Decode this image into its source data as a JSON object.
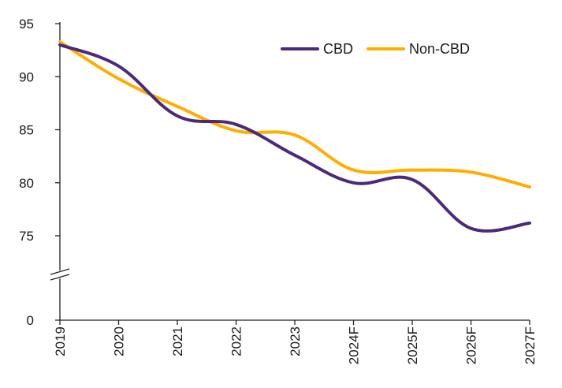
{
  "chart_data": {
    "type": "line",
    "title": "",
    "xlabel": "",
    "ylabel": "",
    "categories": [
      "2019",
      "2020",
      "2021",
      "2022",
      "2023",
      "2024F",
      "2025F",
      "2026F",
      "2027F"
    ],
    "series": [
      {
        "name": "CBD",
        "color": "#4b2a7b",
        "values": [
          93.0,
          91.0,
          86.3,
          85.5,
          82.6,
          80.0,
          80.3,
          75.7,
          76.2
        ]
      },
      {
        "name": "Non-CBD",
        "color": "#ffae00",
        "values": [
          93.3,
          89.8,
          87.2,
          84.9,
          84.5,
          81.2,
          81.2,
          81.0,
          79.6
        ]
      }
    ],
    "y_ticks": [
      "95",
      "90",
      "85",
      "80",
      "75",
      "0"
    ],
    "ylim": [
      0,
      95
    ],
    "y_axis_break": true,
    "grid": false,
    "legend_position": "top-right"
  }
}
